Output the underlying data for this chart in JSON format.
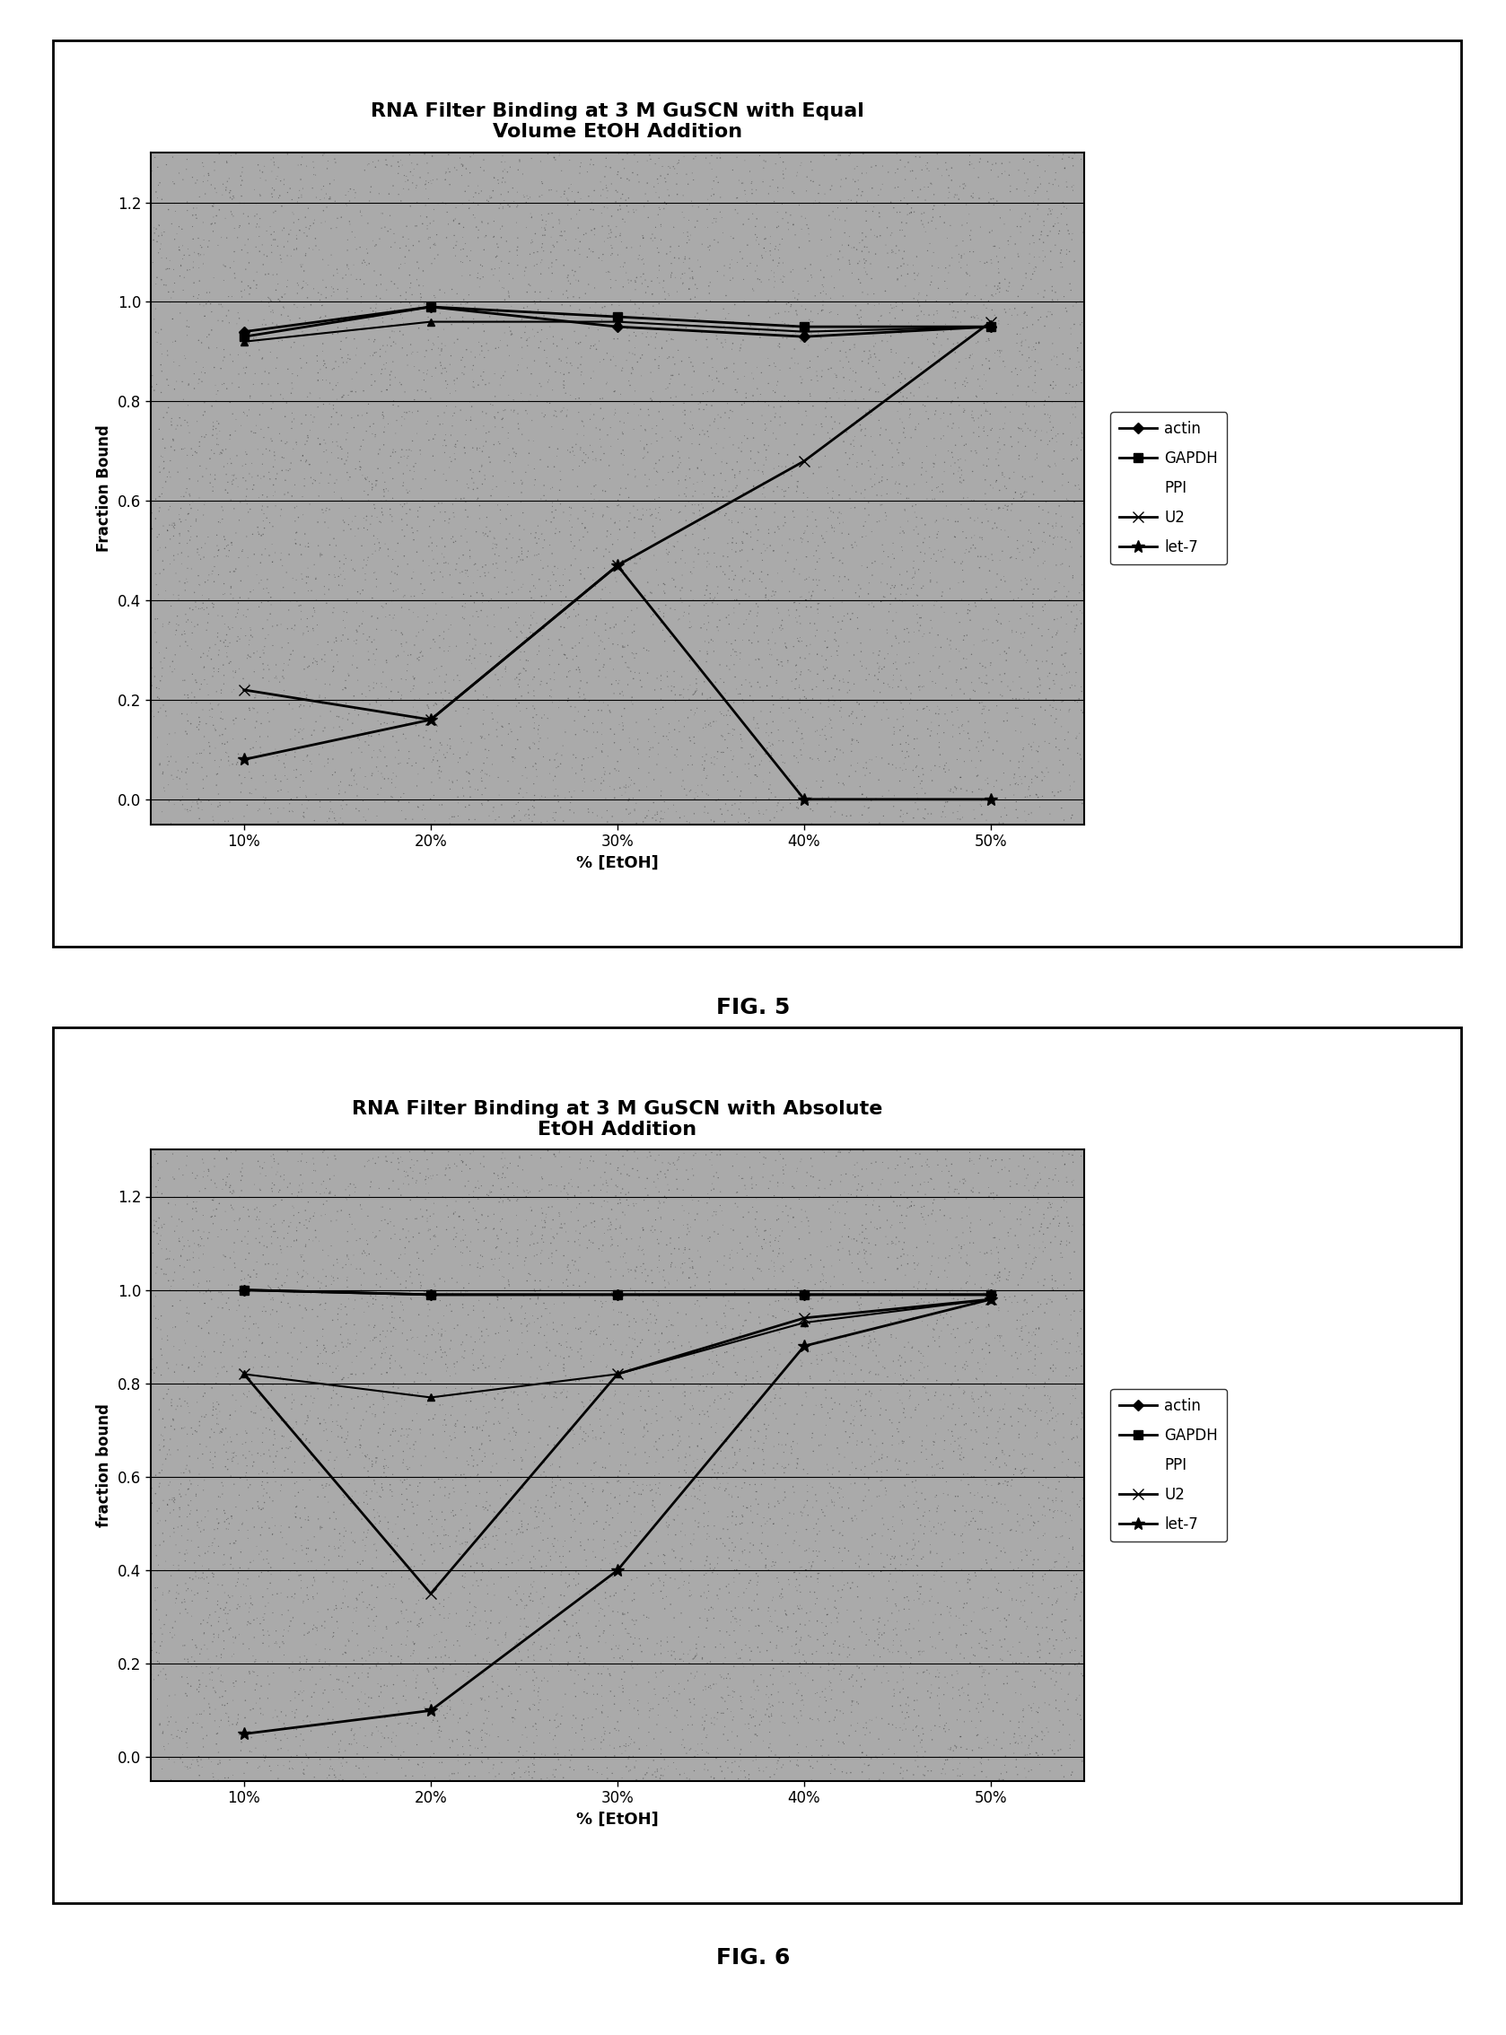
{
  "fig5": {
    "title": "RNA Filter Binding at 3 M GuSCN with Equal\nVolume EtOH Addition",
    "xlabel": "% [EtOH]",
    "ylabel": "Fraction Bound",
    "xtick_labels": [
      "10%",
      "20%",
      "30%",
      "40%",
      "50%"
    ],
    "x_values": [
      10,
      20,
      30,
      40,
      50
    ],
    "yticks": [
      0.0,
      0.2,
      0.4,
      0.6,
      0.8,
      1.0,
      1.2
    ],
    "ylim": [
      -0.05,
      1.3
    ],
    "series": {
      "actin": [
        0.94,
        0.99,
        0.95,
        0.93,
        0.95
      ],
      "GAPDH": [
        0.93,
        0.99,
        0.97,
        0.95,
        0.95
      ],
      "PPI": [
        0.92,
        0.96,
        0.96,
        0.94,
        0.95
      ],
      "U2": [
        0.22,
        0.16,
        0.47,
        0.68,
        0.96
      ],
      "let-7": [
        0.08,
        0.16,
        0.47,
        0.0,
        0.0
      ]
    },
    "fig_label": "FIG. 5"
  },
  "fig6": {
    "title": "RNA Filter Binding at 3 M GuSCN with Absolute\nEtOH Addition",
    "xlabel": "% [EtOH]",
    "ylabel": "fraction bound",
    "xtick_labels": [
      "10%",
      "20%",
      "30%",
      "40%",
      "50%"
    ],
    "x_values": [
      10,
      20,
      30,
      40,
      50
    ],
    "yticks": [
      0.0,
      0.2,
      0.4,
      0.6,
      0.8,
      1.0,
      1.2
    ],
    "ylim": [
      -0.05,
      1.3
    ],
    "series": {
      "actin": [
        1.0,
        0.99,
        0.99,
        0.99,
        0.99
      ],
      "GAPDH": [
        1.0,
        0.99,
        0.99,
        0.99,
        0.99
      ],
      "PPI": [
        0.82,
        0.77,
        0.82,
        0.93,
        0.98
      ],
      "U2": [
        0.82,
        0.35,
        0.82,
        0.94,
        0.98
      ],
      "let-7": [
        0.05,
        0.1,
        0.4,
        0.88,
        0.98
      ]
    },
    "fig_label": "FIG. 6"
  },
  "line_color": "#000000",
  "bg_color": "#aaaaaa",
  "noise_density": 8000
}
